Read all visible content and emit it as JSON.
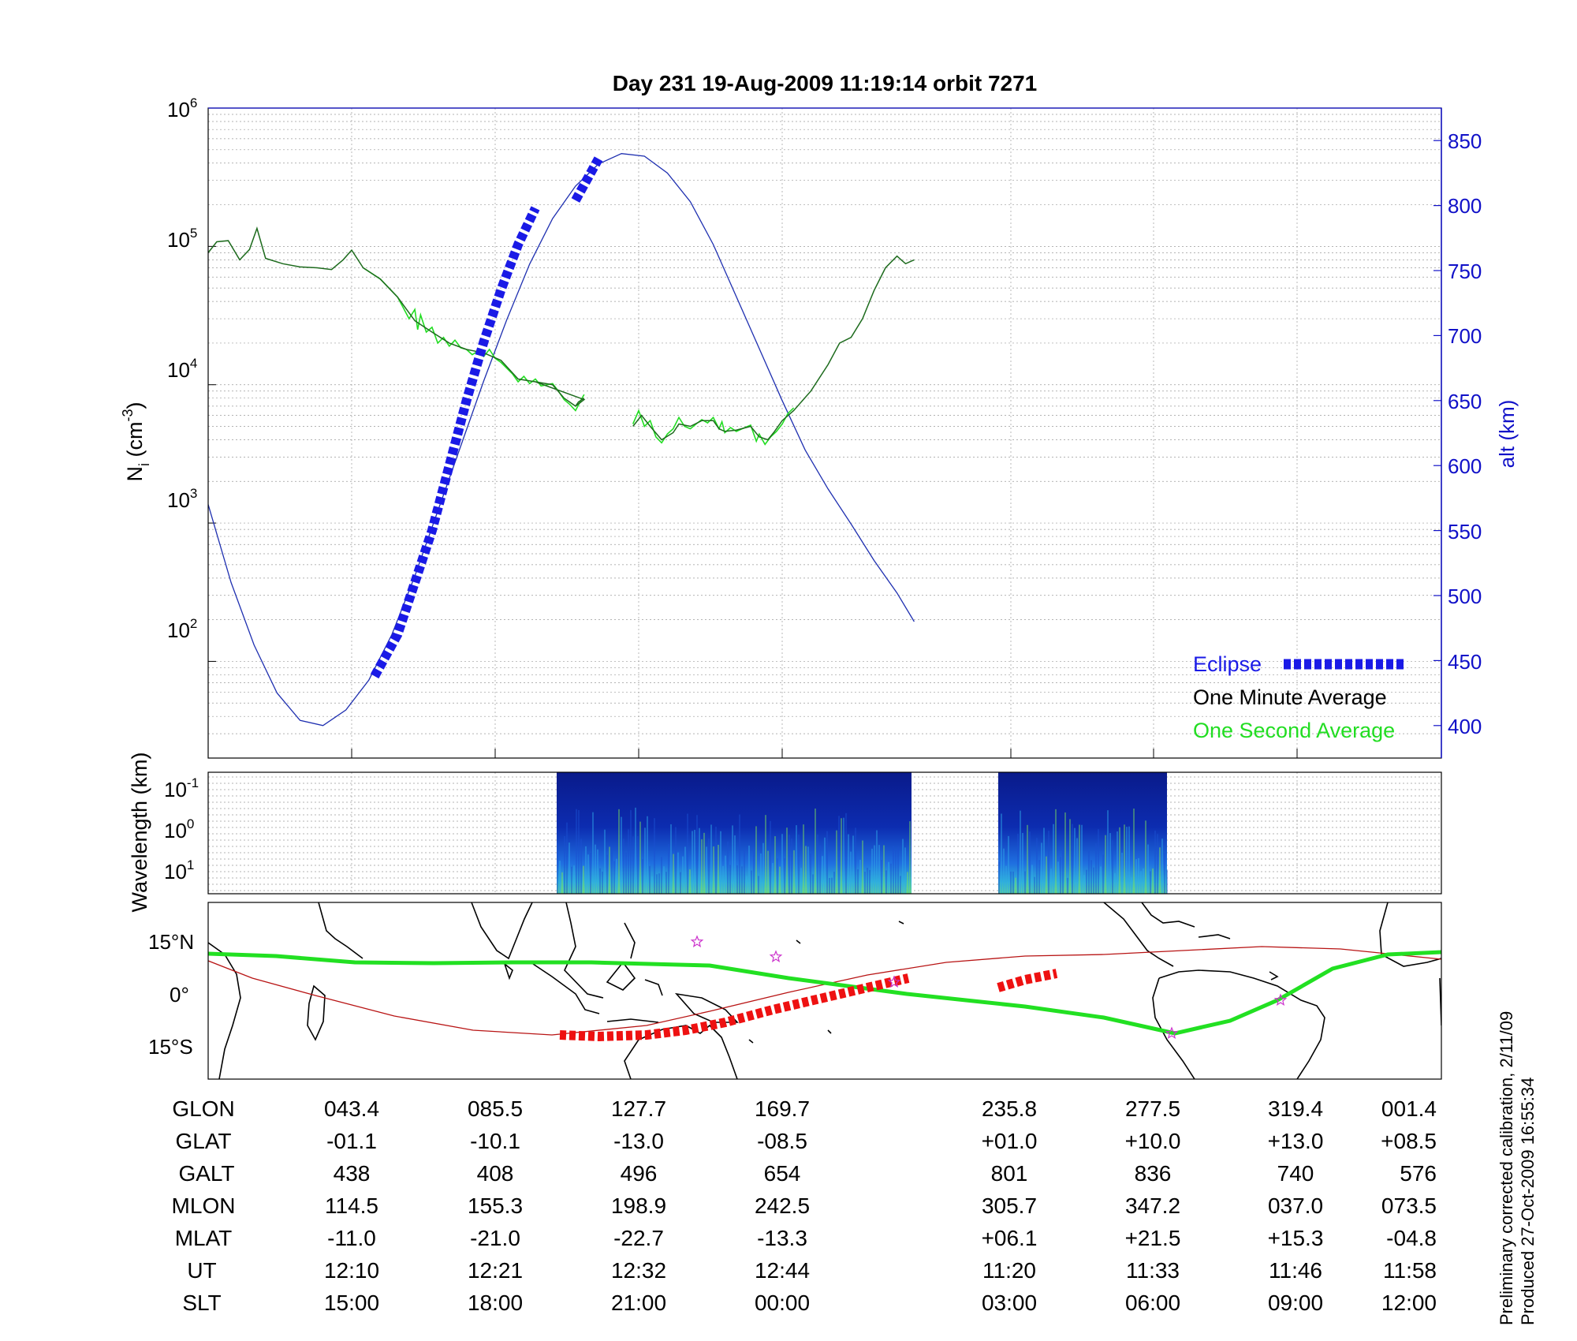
{
  "chart_data": [
    {
      "type": "line",
      "title": "Day 231  19-Aug-2009 11:19:14   orbit 7271",
      "ylabel": "N",
      "ylabel_sub": "i",
      "ylabel_unit_pre": " (cm",
      "ylabel_unit_exp": "-3",
      "ylabel_unit_post": ")",
      "y_scale": "log",
      "ylim": [
        20,
        1000000
      ],
      "y_ticks": [
        {
          "base": "10",
          "exp": "2"
        },
        {
          "base": "10",
          "exp": "3"
        },
        {
          "base": "10",
          "exp": "4"
        },
        {
          "base": "10",
          "exp": "5"
        },
        {
          "base": "10",
          "exp": "6"
        }
      ],
      "y_tick_values": [
        100,
        1000,
        10000,
        100000,
        1000000
      ],
      "y2label": "alt (km)",
      "y2lim": [
        375,
        875
      ],
      "y2_ticks": [
        "400",
        "450",
        "500",
        "550",
        "600",
        "650",
        "700",
        "750",
        "800",
        "850"
      ],
      "grid": true,
      "legend_position": "bottom-right",
      "legend": {
        "eclipse": "Eclipse",
        "minute": "One Minute Average",
        "second": "One Second Average"
      },
      "colors": {
        "eclipse": "#1a1ae6",
        "minute": "#1d6b1d",
        "second": "#22dd22",
        "altitude": "#1e2fb0",
        "axis_right": "#1010c8"
      },
      "series": [
        {
          "name": "One Minute Average",
          "segments": [
            [
              [
                0.0,
                90000
              ],
              [
                0.015,
                108000
              ],
              [
                0.035,
                110000
              ],
              [
                0.055,
                80000
              ],
              [
                0.072,
                95000
              ],
              [
                0.085,
                135000
              ],
              [
                0.1,
                82000
              ],
              [
                0.13,
                75000
              ],
              [
                0.16,
                71000
              ],
              [
                0.19,
                70000
              ],
              [
                0.215,
                68000
              ],
              [
                0.235,
                80000
              ],
              [
                0.25,
                94000
              ],
              [
                0.27,
                70000
              ],
              [
                0.3,
                58000
              ],
              [
                0.33,
                43000
              ],
              [
                0.36,
                29000
              ],
              [
                0.39,
                24000
              ],
              [
                0.42,
                20000
              ],
              [
                0.45,
                18000
              ],
              [
                0.48,
                17000
              ],
              [
                0.51,
                15000
              ],
              [
                0.54,
                11000
              ],
              [
                0.57,
                10500
              ],
              [
                0.6,
                10000
              ],
              [
                0.62,
                8000
              ],
              [
                0.64,
                7000
              ],
              [
                0.655,
                7800
              ],
              [
                0.57,
                10500
              ]
            ],
            [
              [
                0.64,
                7000
              ],
              [
                0.645,
                7500
              ],
              [
                0.655,
                8000
              ]
            ],
            [
              [
                0.74,
                5000
              ],
              [
                0.755,
                6000
              ],
              [
                0.77,
                5000
              ],
              [
                0.79,
                4000
              ],
              [
                0.81,
                4500
              ],
              [
                0.82,
                5200
              ],
              [
                0.84,
                5000
              ],
              [
                0.86,
                5500
              ],
              [
                0.88,
                5500
              ],
              [
                0.89,
                4800
              ],
              [
                0.9,
                4600
              ],
              [
                0.92,
                4700
              ],
              [
                0.945,
                5000
              ],
              [
                0.96,
                4200
              ],
              [
                0.975,
                4000
              ],
              [
                0.985,
                4500
              ],
              [
                1.0,
                5500
              ],
              [
                1.02,
                6500
              ],
              [
                1.05,
                9000
              ],
              [
                1.08,
                14000
              ],
              [
                1.1,
                20000
              ],
              [
                1.12,
                22000
              ],
              [
                1.14,
                30000
              ],
              [
                1.16,
                48000
              ],
              [
                1.18,
                70000
              ],
              [
                1.2,
                85000
              ],
              [
                1.215,
                75000
              ],
              [
                1.23,
                80000
              ]
            ]
          ]
        },
        {
          "name": "One Second Average",
          "segments": [
            [
              [
                0.27,
                70000
              ],
              [
                0.3,
                58000
              ],
              [
                0.33,
                43000
              ],
              [
                0.35,
                30000
              ],
              [
                0.36,
                35000
              ],
              [
                0.365,
                25000
              ],
              [
                0.37,
                32000
              ],
              [
                0.38,
                24000
              ],
              [
                0.39,
                26000
              ],
              [
                0.4,
                20000
              ],
              [
                0.41,
                22000
              ],
              [
                0.42,
                19000
              ],
              [
                0.43,
                21000
              ],
              [
                0.44,
                18500
              ],
              [
                0.45,
                18000
              ],
              [
                0.46,
                16500
              ],
              [
                0.47,
                17500
              ],
              [
                0.48,
                16000
              ],
              [
                0.49,
                18000
              ],
              [
                0.5,
                15500
              ],
              [
                0.51,
                14500
              ],
              [
                0.53,
                12000
              ],
              [
                0.54,
                10500
              ],
              [
                0.55,
                11500
              ],
              [
                0.56,
                10200
              ],
              [
                0.57,
                11000
              ],
              [
                0.58,
                9800
              ],
              [
                0.6,
                10200
              ],
              [
                0.61,
                9000
              ],
              [
                0.62,
                7800
              ],
              [
                0.63,
                7200
              ],
              [
                0.64,
                6500
              ],
              [
                0.65,
                7800
              ],
              [
                0.655,
                8500
              ]
            ],
            [
              [
                0.74,
                5200
              ],
              [
                0.75,
                6500
              ],
              [
                0.76,
                5000
              ],
              [
                0.77,
                5500
              ],
              [
                0.78,
                4200
              ],
              [
                0.79,
                3800
              ],
              [
                0.8,
                4400
              ],
              [
                0.81,
                4800
              ],
              [
                0.82,
                5800
              ],
              [
                0.83,
                5000
              ],
              [
                0.84,
                4800
              ],
              [
                0.85,
                5200
              ],
              [
                0.86,
                5600
              ],
              [
                0.87,
                5300
              ],
              [
                0.88,
                5800
              ],
              [
                0.89,
                4800
              ],
              [
                0.895,
                5400
              ],
              [
                0.9,
                4500
              ],
              [
                0.91,
                4900
              ],
              [
                0.92,
                4600
              ],
              [
                0.93,
                4800
              ],
              [
                0.945,
                5100
              ],
              [
                0.955,
                3900
              ],
              [
                0.96,
                4400
              ],
              [
                0.97,
                3700
              ],
              [
                0.98,
                4200
              ],
              [
                0.99,
                4600
              ],
              [
                1.0,
                5200
              ],
              [
                1.01,
                6200
              ],
              [
                1.02,
                6800
              ]
            ]
          ]
        },
        {
          "name": "Eclipse",
          "axis": "right",
          "segments": [
            [
              [
                0.29,
                438
              ],
              [
                0.33,
                470
              ],
              [
                0.36,
                510
              ],
              [
                0.39,
                550
              ],
              [
                0.42,
                600
              ],
              [
                0.45,
                650
              ],
              [
                0.48,
                695
              ],
              [
                0.51,
                735
              ],
              [
                0.54,
                770
              ],
              [
                0.57,
                798
              ]
            ],
            [
              [
                0.64,
                804
              ],
              [
                0.68,
                836
              ]
            ]
          ]
        },
        {
          "name": "alt",
          "axis": "right",
          "segments": [
            [
              [
                0.0,
                570
              ],
              [
                0.04,
                510
              ],
              [
                0.08,
                462
              ],
              [
                0.12,
                425
              ],
              [
                0.16,
                404
              ],
              [
                0.2,
                400
              ],
              [
                0.24,
                412
              ],
              [
                0.28,
                435
              ],
              [
                0.32,
                470
              ],
              [
                0.36,
                515
              ],
              [
                0.4,
                565
              ],
              [
                0.44,
                615
              ],
              [
                0.48,
                665
              ],
              [
                0.52,
                712
              ],
              [
                0.56,
                755
              ],
              [
                0.6,
                790
              ],
              [
                0.64,
                815
              ],
              [
                0.68,
                832
              ],
              [
                0.72,
                840
              ],
              [
                0.76,
                838
              ],
              [
                0.8,
                825
              ],
              [
                0.84,
                803
              ],
              [
                0.88,
                770
              ],
              [
                0.92,
                730
              ],
              [
                0.96,
                690
              ],
              [
                1.0,
                650
              ],
              [
                1.04,
                612
              ],
              [
                1.08,
                582
              ],
              [
                1.12,
                555
              ],
              [
                1.16,
                527
              ],
              [
                1.2,
                502
              ],
              [
                1.23,
                480
              ]
            ]
          ]
        }
      ]
    },
    {
      "type": "heatmap",
      "ylabel": "Wavelength (km)",
      "y_scale": "log",
      "y_ticks": [
        {
          "base": "10",
          "exp": "-1"
        },
        {
          "base": "10",
          "exp": "0"
        },
        {
          "base": "10",
          "exp": "1"
        }
      ],
      "data_windows": [
        [
          0.283,
          0.571
        ],
        [
          0.641,
          0.778
        ]
      ],
      "colors": {
        "low": "#0a1a8a",
        "mid": "#1f6fe0",
        "high": "#7de05a"
      }
    },
    {
      "type": "map",
      "y_ticks": [
        "15°N",
        "0°",
        "15°S"
      ],
      "colors": {
        "track": "#22e022",
        "eclipse": "#ee1111",
        "path": "#b81414",
        "coast": "#000000",
        "star": "#cc33cc"
      }
    }
  ],
  "footer_table": {
    "labels": [
      "GLON",
      "GLAT",
      "GALT",
      "MLON",
      "MLAT",
      "UT",
      "SLT"
    ],
    "columns": [
      [
        "043.4",
        "-01.1",
        "438",
        "114.5",
        "-11.0",
        "12:10",
        "15:00"
      ],
      [
        "085.5",
        "-10.1",
        "408",
        "155.3",
        "-21.0",
        "12:21",
        "18:00"
      ],
      [
        "127.7",
        "-13.0",
        "496",
        "198.9",
        "-22.7",
        "12:32",
        "21:00"
      ],
      [
        "169.7",
        "-08.5",
        "654",
        "242.5",
        "-13.3",
        "12:44",
        "00:00"
      ],
      [
        "235.8",
        "+01.0",
        "801",
        "305.7",
        "+06.1",
        "11:20",
        "03:00"
      ],
      [
        "277.5",
        "+10.0",
        "836",
        "347.2",
        "+21.5",
        "11:33",
        "06:00"
      ],
      [
        "319.4",
        "+13.0",
        "740",
        "037.0",
        "+15.3",
        "11:46",
        "09:00"
      ],
      [
        "001.4",
        "+08.5",
        "576",
        "073.5",
        "-04.8",
        "11:58",
        "12:00"
      ]
    ]
  },
  "side_note": {
    "line1": "Preliminary corrected calibration, 2/11/09",
    "line2": "Produced 27-Oct-2009 16:55:34"
  }
}
